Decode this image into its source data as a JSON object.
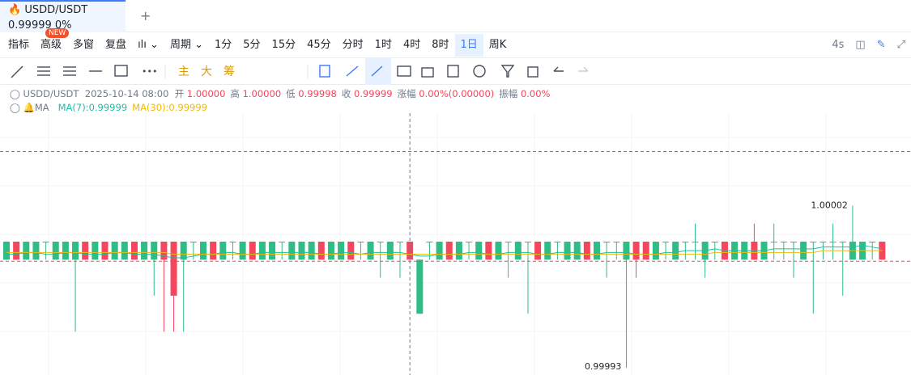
{
  "tab": {
    "symbol": "USDD/USDT",
    "price": "0.99999",
    "change": "0%",
    "badge": "NEW",
    "add": "+"
  },
  "toolbar": {
    "left": [
      "指标",
      "高级",
      "多窗",
      "复盘"
    ],
    "period": "周期",
    "periods": [
      "1分",
      "5分",
      "15分",
      "45分",
      "分时",
      "1时",
      "4时",
      "8时",
      "1日",
      "周K"
    ],
    "selected": "1日",
    "refresh": "4s"
  },
  "draw_tools": [
    "主",
    "大",
    "筹"
  ],
  "info": {
    "symbol": "USDD/USDT",
    "time": "2025-10-14 08:00",
    "fields": [
      {
        "label": "开",
        "value": "1.00000"
      },
      {
        "label": "高",
        "value": "1.00000"
      },
      {
        "label": "低",
        "value": "0.99998"
      },
      {
        "label": "收",
        "value": "0.99999"
      },
      {
        "label": "涨幅",
        "value": "0.00%(0.00000)"
      },
      {
        "label": "振幅",
        "value": "0.00%"
      }
    ]
  },
  "ma": {
    "name": "MA",
    "items": [
      {
        "label": "MA(7):0.99999",
        "color": "#1fbfa6"
      },
      {
        "label": "MA(30):0.99999",
        "color": "#f0b90b"
      }
    ]
  },
  "chart_data": {
    "type": "candlestick",
    "ylim": [
      0.999926,
      1.000087
    ],
    "up_color": "#2ebd85",
    "down_color": "#f6465d",
    "last_price": 0.99999,
    "crosshair": {
      "index": 41,
      "price": 1.00005
    },
    "candles": [
      [
        0.99999,
        1,
        0.99999,
        1
      ],
      [
        1,
        1,
        0.99999,
        0.99999
      ],
      [
        0.99999,
        1,
        0.99999,
        1
      ],
      [
        0.99999,
        1,
        0.99999,
        1
      ],
      [
        1,
        1,
        0.99999,
        1
      ],
      [
        0.99999,
        1,
        0.99999,
        1
      ],
      [
        0.99999,
        1,
        0.99999,
        1
      ],
      [
        0.99999,
        1,
        0.99995,
        1
      ],
      [
        1,
        1,
        0.99999,
        0.99999
      ],
      [
        0.99999,
        1,
        0.99999,
        1
      ],
      [
        1,
        1,
        0.99999,
        0.99999
      ],
      [
        0.99999,
        1,
        0.99999,
        1
      ],
      [
        0.99999,
        1,
        0.99999,
        1
      ],
      [
        1,
        1,
        0.99999,
        0.99999
      ],
      [
        0.99999,
        1,
        0.99999,
        1
      ],
      [
        0.99999,
        1,
        0.99997,
        1
      ],
      [
        1,
        1,
        0.99995,
        0.99999
      ],
      [
        1,
        1,
        0.99995,
        0.99997
      ],
      [
        0.99999,
        1,
        0.99995,
        1
      ],
      [
        1,
        1,
        0.99999,
        1
      ],
      [
        0.99999,
        1,
        0.99999,
        1
      ],
      [
        1,
        1,
        0.99999,
        0.99999
      ],
      [
        0.99999,
        1,
        0.99999,
        1
      ],
      [
        1,
        1,
        0.99999,
        1
      ],
      [
        0.99999,
        1,
        0.99999,
        1
      ],
      [
        1,
        1,
        0.99999,
        0.99999
      ],
      [
        0.99999,
        1,
        0.99999,
        1
      ],
      [
        0.99999,
        1,
        0.99999,
        1
      ],
      [
        1,
        1,
        0.99999,
        1
      ],
      [
        0.99999,
        1,
        0.99999,
        1
      ],
      [
        0.99999,
        1,
        0.99999,
        1
      ],
      [
        0.99999,
        1,
        0.99999,
        1
      ],
      [
        1,
        1,
        0.99999,
        0.99999
      ],
      [
        0.99999,
        1,
        0.99999,
        1
      ],
      [
        0.99999,
        1,
        0.99999,
        1
      ],
      [
        1,
        1,
        0.99999,
        0.99999
      ],
      [
        1,
        1,
        0.99999,
        1
      ],
      [
        0.99999,
        1,
        0.99999,
        1
      ],
      [
        1,
        1,
        0.99998,
        1
      ],
      [
        0.99999,
        1,
        0.99999,
        1
      ],
      [
        1,
        1,
        0.99998,
        1
      ],
      [
        1,
        1,
        0.99999,
        0.99999
      ],
      [
        0.99996,
        0.99999,
        0.99996,
        0.99999
      ],
      [
        1,
        1,
        0.99999,
        1
      ],
      [
        0.99999,
        1,
        0.99999,
        1
      ],
      [
        1,
        1,
        0.99999,
        0.99999
      ],
      [
        0.99999,
        1,
        0.99999,
        1
      ],
      [
        1,
        1,
        0.99999,
        1
      ],
      [
        0.99999,
        1,
        0.99999,
        1
      ],
      [
        1,
        1,
        0.99999,
        0.99999
      ],
      [
        0.99999,
        1,
        0.99999,
        1
      ],
      [
        1,
        1,
        0.99998,
        1
      ],
      [
        0.99999,
        1,
        0.99999,
        1
      ],
      [
        1,
        1,
        0.99996,
        1
      ],
      [
        1,
        1,
        0.99999,
        0.99999
      ],
      [
        0.99999,
        1,
        0.99999,
        1
      ],
      [
        1,
        1,
        0.99999,
        1
      ],
      [
        0.99999,
        1,
        0.99999,
        1
      ],
      [
        0.99999,
        1,
        0.99999,
        1
      ],
      [
        1,
        1,
        0.99999,
        0.99999
      ],
      [
        0.99999,
        1,
        0.99999,
        1
      ],
      [
        1,
        1,
        0.99998,
        1
      ],
      [
        1,
        1,
        0.99999,
        1
      ],
      [
        0.99999,
        1,
        0.99993,
        1
      ],
      [
        1,
        1,
        0.99998,
        0.99999
      ],
      [
        1,
        1,
        0.99999,
        0.99999
      ],
      [
        0.99999,
        1,
        0.99999,
        1
      ],
      [
        1,
        1,
        0.99999,
        1
      ],
      [
        0.99999,
        1,
        0.99999,
        1
      ],
      [
        1,
        1,
        0.99999,
        1
      ],
      [
        1,
        1.00001,
        0.99999,
        1
      ],
      [
        0.99999,
        1,
        0.99998,
        1
      ],
      [
        1,
        1,
        0.99999,
        1
      ],
      [
        1,
        1,
        0.99999,
        0.99999
      ],
      [
        0.99999,
        1,
        0.99999,
        1
      ],
      [
        0.99999,
        1,
        0.99999,
        1
      ],
      [
        1,
        1.00001,
        0.99999,
        0.99999
      ],
      [
        0.99999,
        1,
        0.99999,
        1
      ],
      [
        1,
        1.00001,
        0.99999,
        1
      ],
      [
        1,
        1,
        0.99999,
        1
      ],
      [
        1,
        1,
        0.99998,
        1
      ],
      [
        0.99999,
        1,
        0.99999,
        1
      ],
      [
        1,
        1,
        0.99996,
        1
      ],
      [
        1,
        1,
        0.99999,
        1
      ],
      [
        1,
        1.00001,
        0.99999,
        1
      ],
      [
        1,
        1,
        0.99997,
        1
      ],
      [
        0.99999,
        1.00002,
        0.99999,
        1
      ],
      [
        0.99999,
        1,
        0.99999,
        1
      ],
      [
        1,
        1,
        0.99999,
        1
      ],
      [
        1,
        1,
        0.99999,
        0.99999
      ]
    ],
    "ma7": [
      0.999993,
      0.999993,
      0.999994,
      0.999994,
      0.999993,
      0.999993,
      0.999994,
      0.999994,
      0.999993,
      0.999993,
      0.999993,
      0.999994,
      0.999994,
      0.999993,
      0.999993,
      0.999993,
      0.999992,
      0.999991,
      0.999991,
      0.999992,
      0.999993,
      0.999993,
      0.999994,
      0.999994,
      0.999993,
      0.999993,
      0.999994,
      0.999994,
      0.999994,
      0.999994,
      0.999994,
      0.999994,
      0.999993,
      0.999993,
      0.999994,
      0.999994,
      0.999993,
      0.999994,
      0.999994,
      0.999994,
      0.999994,
      0.999993,
      0.999992,
      0.999992,
      0.999993,
      0.999993,
      0.999993,
      0.999994,
      0.999994,
      0.999993,
      0.999993,
      0.999994,
      0.999994,
      0.999994,
      0.999993,
      0.999993,
      0.999994,
      0.999994,
      0.999994,
      0.999993,
      0.999993,
      0.999994,
      0.999994,
      0.999994,
      0.999993,
      0.999993,
      0.999993,
      0.999994,
      0.999994,
      0.999995,
      0.999995,
      0.999995,
      0.999996,
      0.999995,
      0.999995,
      0.999995,
      0.999995,
      0.999995,
      0.999996,
      0.999996,
      0.999996,
      0.999996,
      0.999996,
      0.999997,
      0.999997,
      0.999997,
      0.999997,
      0.999998,
      0.999997,
      0.999996
    ],
    "ma30": [
      0.999994,
      0.999994,
      0.999994,
      0.999994,
      0.999994,
      0.999994,
      0.999994,
      0.999994,
      0.999994,
      0.999994,
      0.999994,
      0.999994,
      0.999994,
      0.999994,
      0.999994,
      0.999994,
      0.999994,
      0.999993,
      0.999993,
      0.999993,
      0.999993,
      0.999993,
      0.999993,
      0.999993,
      0.999993,
      0.999993,
      0.999993,
      0.999993,
      0.999993,
      0.999993,
      0.999993,
      0.999993,
      0.999993,
      0.999993,
      0.999993,
      0.999993,
      0.999993,
      0.999993,
      0.999993,
      0.999993,
      0.999993,
      0.999993,
      0.999993,
      0.999993,
      0.999993,
      0.999993,
      0.999993,
      0.999993,
      0.999993,
      0.999993,
      0.999993,
      0.999993,
      0.999993,
      0.999993,
      0.999993,
      0.999993,
      0.999993,
      0.999993,
      0.999993,
      0.999993,
      0.999993,
      0.999993,
      0.999993,
      0.999993,
      0.999993,
      0.999993,
      0.999993,
      0.999993,
      0.999993,
      0.999993,
      0.999993,
      0.999993,
      0.999994,
      0.999994,
      0.999994,
      0.999994,
      0.999994,
      0.999994,
      0.999994,
      0.999994,
      0.999994,
      0.999994,
      0.999994,
      0.999995,
      0.999995,
      0.999995,
      0.999995,
      0.999995,
      0.999995,
      0.999995
    ]
  }
}
